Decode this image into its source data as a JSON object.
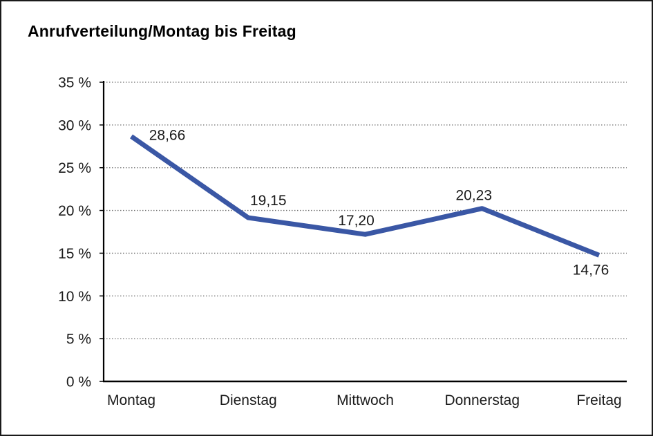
{
  "header": {
    "title": "Anrufverteilung/Montag bis Freitag"
  },
  "chart_data": {
    "type": "line",
    "title": "Anrufverteilung/Montag bis Freitag",
    "categories": [
      "Montag",
      "Dienstag",
      "Mittwoch",
      "Donnerstag",
      "Freitag"
    ],
    "values": [
      28.66,
      19.15,
      17.2,
      20.23,
      14.76
    ],
    "value_labels": [
      "28,66",
      "19,15",
      "17,20",
      "20,23",
      "14,76"
    ],
    "series_name": "Anrufverteilung",
    "xlabel": "",
    "ylabel": "",
    "ylim": [
      0,
      35
    ],
    "y_tick_step": 5,
    "y_ticks": [
      {
        "value": 0,
        "label": "0 %"
      },
      {
        "value": 5,
        "label": "5 %"
      },
      {
        "value": 10,
        "label": "10 %"
      },
      {
        "value": 15,
        "label": "15 %"
      },
      {
        "value": 20,
        "label": "20 %"
      },
      {
        "value": 25,
        "label": "25 %"
      },
      {
        "value": 30,
        "label": "30 %"
      },
      {
        "value": 35,
        "label": "35 %"
      }
    ],
    "grid": "horizontal-dotted",
    "legend": "none",
    "colors": {
      "line": "#3A57A5",
      "axis": "#000000",
      "grid": "#6e6e6e",
      "text": "#1a1a1a",
      "background": "#ffffff",
      "frame_border": "#1a1a1a"
    }
  }
}
